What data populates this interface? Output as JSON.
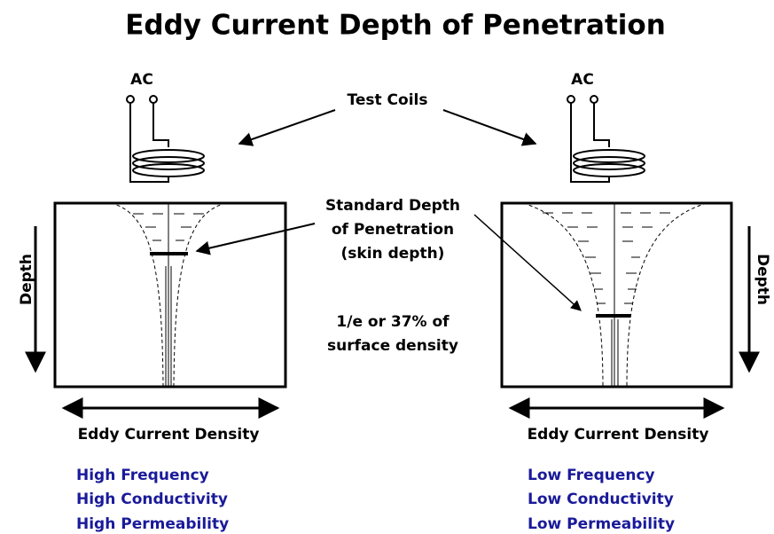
{
  "title": "Eddy Current Depth of Penetration",
  "labels": {
    "test_coils": "Test Coils",
    "standard_depth": [
      "Standard Depth",
      "of Penetration",
      "(skin depth)"
    ],
    "ratio": [
      "1/e or 37% of",
      "surface density"
    ]
  },
  "panels": [
    {
      "source": "AC",
      "axis_label": "Depth",
      "density_label": "Eddy Current Density",
      "conditions": [
        "High Frequency",
        "High Conductivity",
        "High Permeability"
      ]
    },
    {
      "source": "AC",
      "axis_label": "Depth",
      "density_label": "Eddy Current Density",
      "conditions": [
        "Low Frequency",
        "Low Conductivity",
        "Low Permeability"
      ]
    }
  ]
}
